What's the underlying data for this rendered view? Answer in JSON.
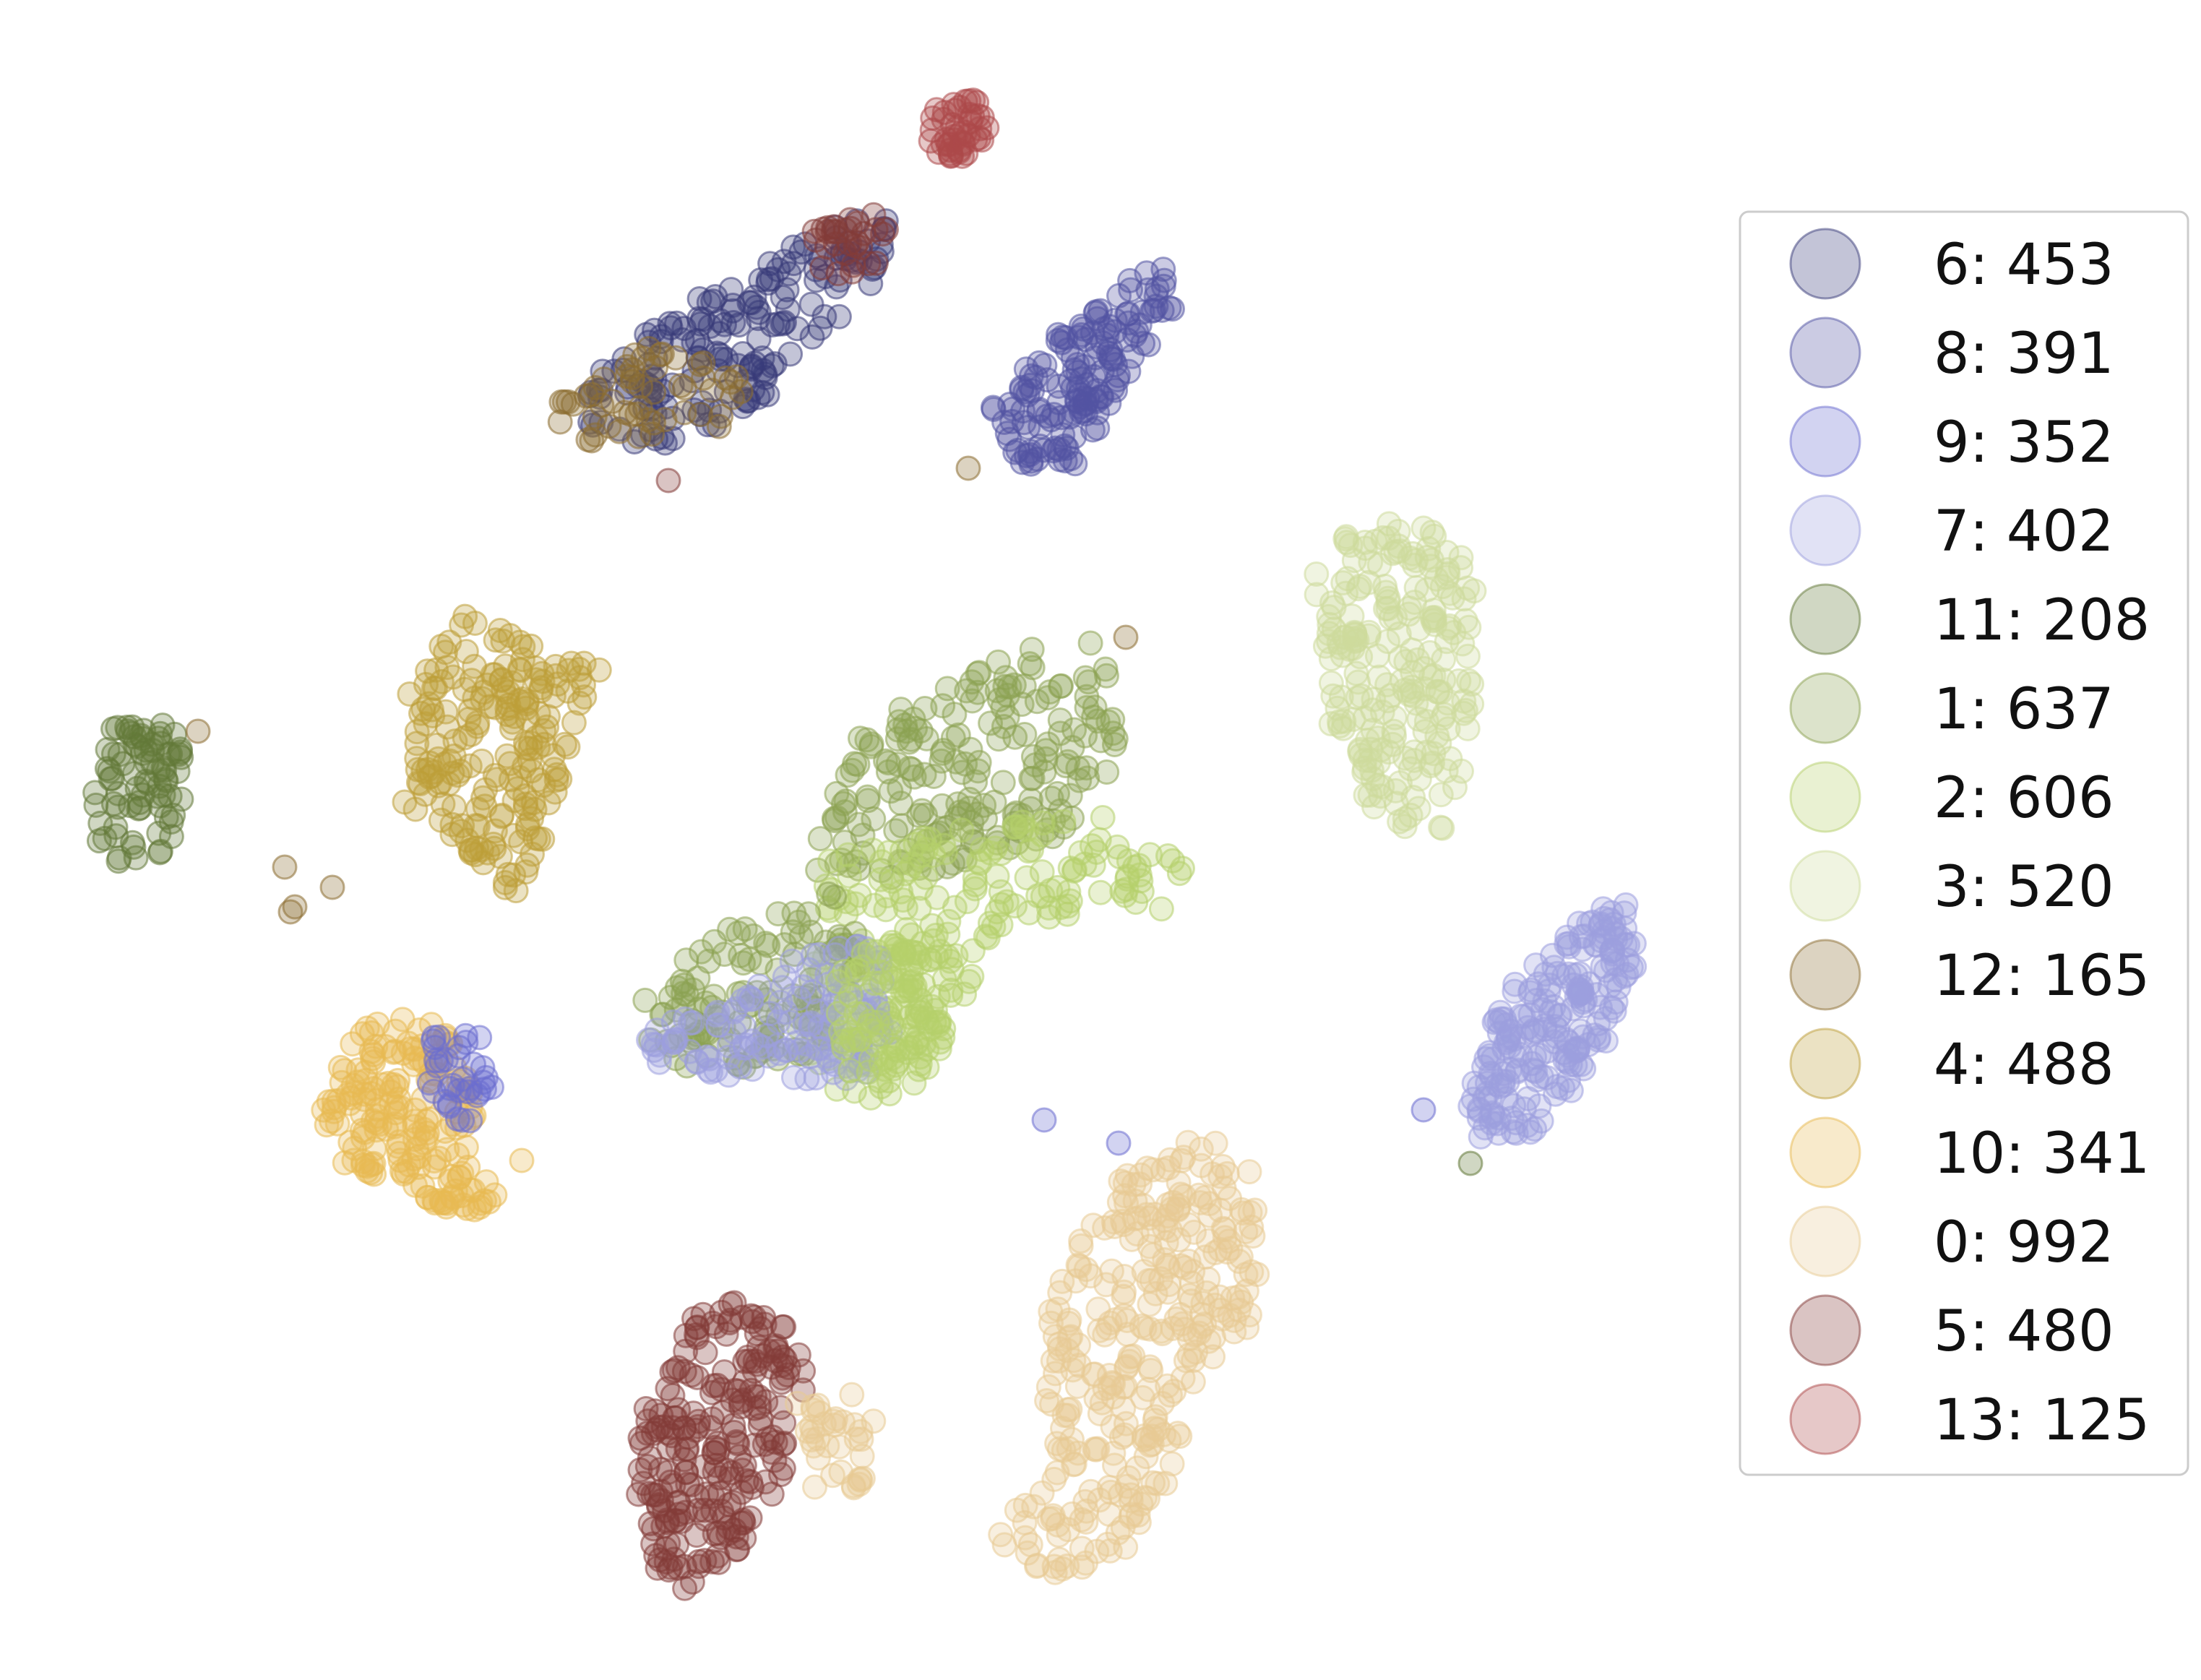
{
  "chart_data": {
    "type": "scatter",
    "title": "",
    "xlabel": "",
    "ylabel": "",
    "axes_visible": false,
    "grid": false,
    "legend_position": "right",
    "marker_alpha": 0.3,
    "xlim": [
      0,
      1
    ],
    "ylim": [
      0,
      1
    ],
    "clusters": [
      {
        "label": "6: 453",
        "color": "#393b79",
        "count": 453
      },
      {
        "label": "8: 391",
        "color": "#5254a3",
        "count": 391
      },
      {
        "label": "9: 352",
        "color": "#6b6ecf",
        "count": 352
      },
      {
        "label": "7: 402",
        "color": "#9c9ede",
        "count": 402
      },
      {
        "label": "11: 208",
        "color": "#637939",
        "count": 208
      },
      {
        "label": "1: 637",
        "color": "#8ca252",
        "count": 637
      },
      {
        "label": "2: 606",
        "color": "#b5cf6b",
        "count": 606
      },
      {
        "label": "3: 520",
        "color": "#cedb9c",
        "count": 520
      },
      {
        "label": "12: 165",
        "color": "#8c6d31",
        "count": 165
      },
      {
        "label": "4: 488",
        "color": "#bd9e39",
        "count": 488
      },
      {
        "label": "10: 341",
        "color": "#e7ba52",
        "count": 341
      },
      {
        "label": "0: 992",
        "color": "#e7cb94",
        "count": 992
      },
      {
        "label": "5: 480",
        "color": "#843c39",
        "count": 480
      },
      {
        "label": "13: 125",
        "color": "#ad494a",
        "count": 125
      }
    ]
  }
}
